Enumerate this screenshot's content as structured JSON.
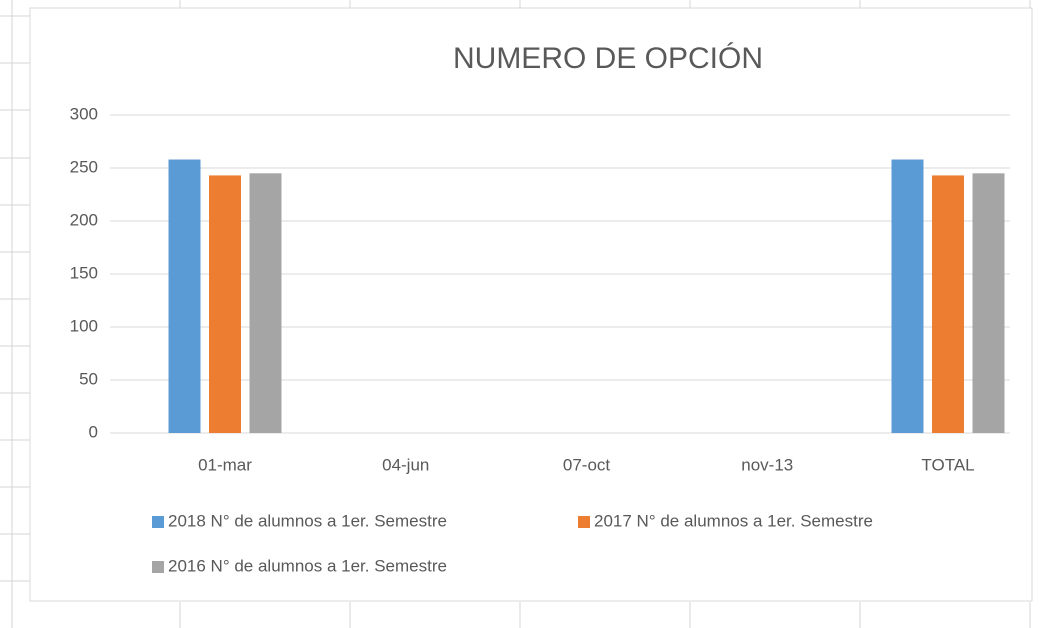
{
  "chart_data": {
    "type": "bar",
    "title": "NUMERO DE OPCIÓN",
    "categories": [
      "01-mar",
      "04-jun",
      "07-oct",
      "nov-13",
      "TOTAL"
    ],
    "series": [
      {
        "name": "2018 N° de alumnos a 1er. Semestre",
        "color": "#5b9bd5",
        "values": [
          258,
          0,
          0,
          0,
          258
        ]
      },
      {
        "name": "2017 N° de alumnos a 1er. Semestre",
        "color": "#ed7d31",
        "values": [
          243,
          0,
          0,
          0,
          243
        ]
      },
      {
        "name": "2016 N° de alumnos a 1er. Semestre",
        "color": "#a5a5a5",
        "values": [
          245,
          0,
          0,
          0,
          245
        ]
      }
    ],
    "ylim": [
      0,
      300
    ],
    "yticks": [
      0,
      50,
      100,
      150,
      200,
      250,
      300
    ],
    "grid": true,
    "legend": "bottom"
  }
}
